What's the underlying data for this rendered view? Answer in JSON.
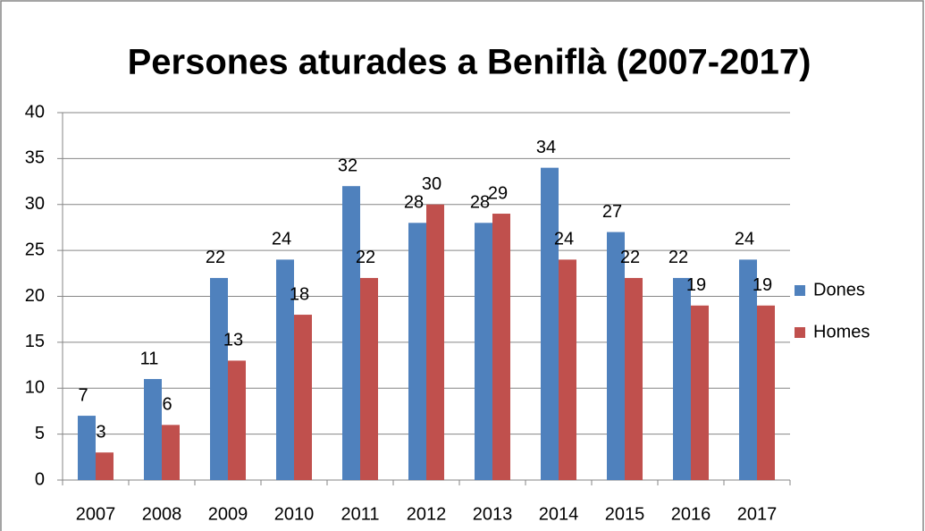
{
  "chart_data": {
    "type": "bar",
    "title": "Persones aturades a Beniflà (2007-2017)",
    "categories": [
      "2007",
      "2008",
      "2009",
      "2010",
      "2011",
      "2012",
      "2013",
      "2014",
      "2015",
      "2016",
      "2017"
    ],
    "series": [
      {
        "name": "Dones",
        "color": "#4f81bd",
        "values": [
          7,
          11,
          22,
          24,
          32,
          28,
          28,
          34,
          27,
          22,
          24
        ]
      },
      {
        "name": "Homes",
        "color": "#c0504d",
        "values": [
          3,
          6,
          13,
          18,
          22,
          30,
          29,
          24,
          22,
          19,
          19
        ]
      }
    ],
    "ylim": [
      0,
      40
    ],
    "yticks": [
      0,
      5,
      10,
      15,
      20,
      25,
      30,
      35,
      40
    ],
    "grid": true,
    "legend": "right"
  }
}
